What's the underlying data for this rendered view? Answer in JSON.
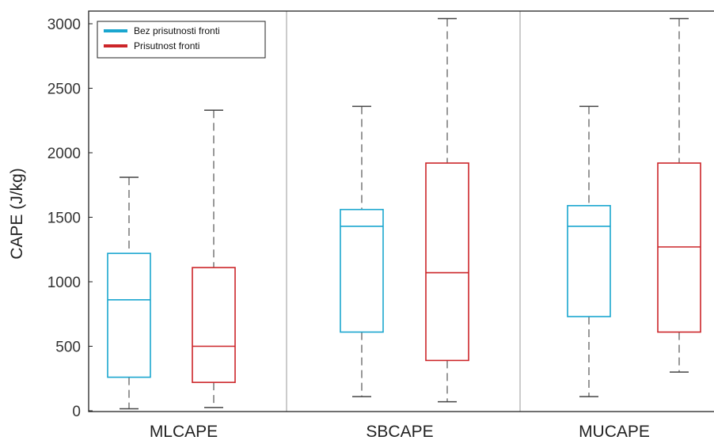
{
  "chart_data": {
    "type": "box",
    "ylabel": "CAPE (J/kg)",
    "ylim": [
      0,
      3100
    ],
    "yticks": [
      0,
      500,
      1000,
      1500,
      2000,
      2500,
      3000
    ],
    "categories": [
      "MLCAPE",
      "SBCAPE",
      "MUCAPE"
    ],
    "legend_position": "top-left",
    "series": [
      {
        "name": "Bez prisutnosti fronti",
        "color": "#1aa6cf",
        "boxes": [
          {
            "min": 15,
            "q1": 260,
            "median": 860,
            "q3": 1220,
            "max": 1810
          },
          {
            "min": 110,
            "q1": 610,
            "median": 1430,
            "q3": 1560,
            "max": 2360
          },
          {
            "min": 110,
            "q1": 730,
            "median": 1430,
            "q3": 1590,
            "max": 2360
          }
        ]
      },
      {
        "name": "Prisutnost fronti",
        "color": "#cc2529",
        "boxes": [
          {
            "min": 25,
            "q1": 220,
            "median": 500,
            "q3": 1110,
            "max": 2330
          },
          {
            "min": 70,
            "q1": 390,
            "median": 1070,
            "q3": 1920,
            "max": 3040
          },
          {
            "min": 300,
            "q1": 610,
            "median": 1270,
            "q3": 1920,
            "max": 3040
          }
        ]
      }
    ]
  }
}
